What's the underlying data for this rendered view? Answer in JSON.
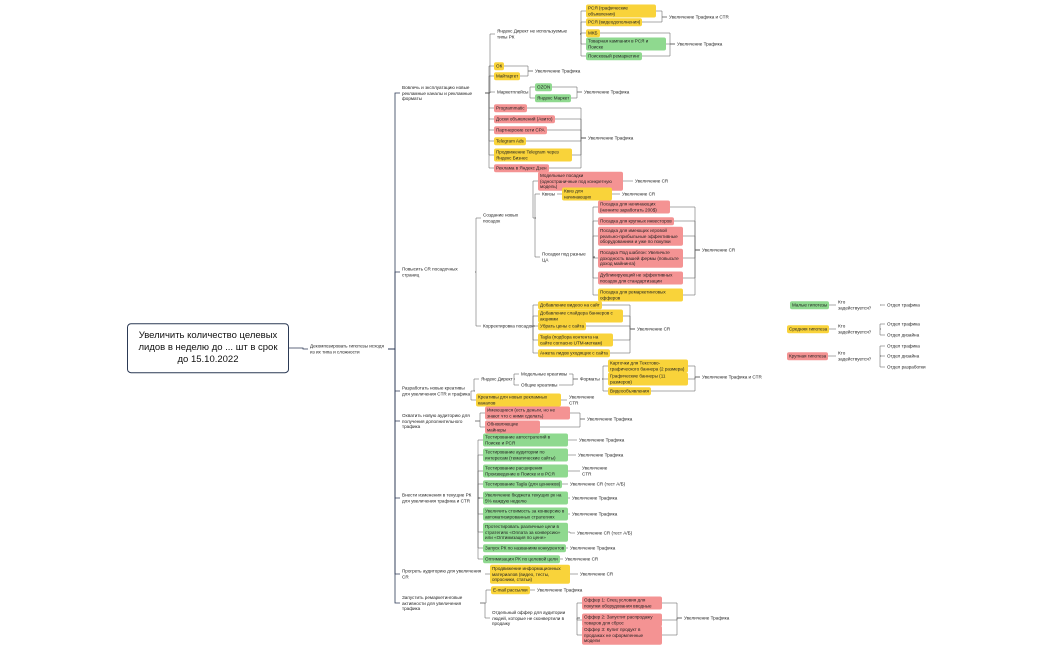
{
  "nodes": [
    {
      "label": "Увеличить количество целевых лидов в неделю до ... шт в срок до 15.10.2022"
    },
    {
      "label": "Декомпозировать гипотезы исходя из их типа и сложности"
    },
    {
      "label": "Вовлечь и эксплуатацию новые рекламные каналы и рекламные форматы"
    },
    {
      "label": "Повысить CR посадочных страниц"
    },
    {
      "label": "Разработать новые креативы для увеличения CTR и трафика"
    },
    {
      "label": "Охватить новую аудиторию для получения дополнительного трафика"
    },
    {
      "label": "Внести изменения в текущие РК для увеличения трафика и CTR"
    },
    {
      "label": "Прогреть аудиторию для увеличения CR"
    },
    {
      "label": "Запустить ремаркетинговые активности для увеличения трафика"
    },
    {
      "label": "Яндекс Директ не используемые типы РК"
    },
    {
      "label": "РСЯ (графические объявления)",
      "color": "#f9d33a"
    },
    {
      "label": "РСЯ (видеодополнения)",
      "color": "#f9d33a"
    },
    {
      "label": "МКБ",
      "color": "#f9d33a"
    },
    {
      "label": "Товарная кампания в РСЯ и Поиске",
      "color": "#8fd98f"
    },
    {
      "label": "Поисковый ремаркетинг",
      "color": "#8fd98f"
    },
    {
      "label": "Увеличение Трафика и CTR"
    },
    {
      "label": "Увеличение Трафика"
    },
    {
      "label": "ОК",
      "color": "#f9d33a"
    },
    {
      "label": "Майтаргет",
      "color": "#f9d33a"
    },
    {
      "label": "Увеличение Трафика"
    },
    {
      "label": "Маркетплейсы"
    },
    {
      "label": "OZON",
      "color": "#8fd98f"
    },
    {
      "label": "Яндекс Маркет",
      "color": "#8fd98f"
    },
    {
      "label": "Увеличение Трафика"
    },
    {
      "label": "Programmatic",
      "color": "#f49393"
    },
    {
      "label": "Доски объявлений (Авито)",
      "color": "#f49393"
    },
    {
      "label": "Партнерские сети CPA",
      "color": "#f49393"
    },
    {
      "label": "Telegram Ads",
      "color": "#f9d33a"
    },
    {
      "label": "Продвижение Telegram через Яндекс Бизнес",
      "color": "#f9d33a"
    },
    {
      "label": "Реклама в Яндекс Дзен",
      "color": "#f49393"
    },
    {
      "label": "Увеличение Трафика"
    },
    {
      "label": "Создание новых посадок"
    },
    {
      "label": "Корректировка посадок"
    },
    {
      "label": "Модельные посадки (одностраничные под конкретную модель)",
      "color": "#f49393"
    },
    {
      "label": "Увеличение CR"
    },
    {
      "label": "Квизы"
    },
    {
      "label": "Квиз для начинающих",
      "color": "#f9d33a"
    },
    {
      "label": "Увеличение CR"
    },
    {
      "label": "Посадки под разные ЦА"
    },
    {
      "label": "Посадка для начинающих (начните заработать 200$)",
      "color": "#f49393"
    },
    {
      "label": "Посадка для крупных инвесторов",
      "color": "#f49393"
    },
    {
      "label": "Посадка для имеющих игровой реально-прибыльные эффективные оборудованием и уже по покупки",
      "color": "#f49393"
    },
    {
      "label": "Посадка Под шаблон: Увеличьте доходность вашей фермы (повысьте доход майнинга)",
      "color": "#f49393"
    },
    {
      "label": "Дубликирующий не эффективных посадок для стандартизации",
      "color": "#f49393"
    },
    {
      "label": "Посадка для ремаркетинговых офферов",
      "color": "#f9d33a"
    },
    {
      "label": "Увеличение CR"
    },
    {
      "label": "Добавление видеоо на сайт",
      "color": "#f9d33a"
    },
    {
      "label": "Добавление слайдера баннеров с акциями",
      "color": "#f9d33a"
    },
    {
      "label": "Убрать цены с сайта",
      "color": "#f9d33a"
    },
    {
      "label": "Tagla (подбора контента на сайте согласно UTM-меткам)",
      "color": "#f9d33a"
    },
    {
      "label": "Анкета лидов уходящих с сайта",
      "color": "#f9d33a"
    },
    {
      "label": "Увеличение CR"
    },
    {
      "label": "Яндекс Директ"
    },
    {
      "label": "Модельные креативы"
    },
    {
      "label": "Общие креативы"
    },
    {
      "label": "Форматы"
    },
    {
      "label": "Карточки для Текстово-графического баннера (2 размера)",
      "color": "#f9d33a"
    },
    {
      "label": "Графические баннеры (11 размеров)",
      "color": "#f9d33a"
    },
    {
      "label": "Видеообъявления",
      "color": "#f9d33a"
    },
    {
      "label": "Увеличение Трафика и CTR"
    },
    {
      "label": "Креативы для новых рекламных каналов",
      "color": "#f9d33a"
    },
    {
      "label": "Увеличение CTR"
    },
    {
      "label": "Имеющиеся (есть деньги, но не знают что с ними сделать)",
      "color": "#f49393"
    },
    {
      "label": "Обновляющие майнеры",
      "color": "#f49393"
    },
    {
      "label": "Увеличение Трафика"
    },
    {
      "label": "Тестирование автостратегий в Поиске и РСЯ",
      "color": "#8fd98f"
    },
    {
      "label": "Увеличение Трафика"
    },
    {
      "label": "Тестирование аудитории по интересам (тематические сайты)",
      "color": "#8fd98f"
    },
    {
      "label": "Увеличение Трафика"
    },
    {
      "label": "Тестирование расширения Произведение в Поиске и в РСЯ",
      "color": "#8fd98f"
    },
    {
      "label": "Увеличение CTR"
    },
    {
      "label": "Тестирование Tagla (для ценников)",
      "color": "#8fd98f"
    },
    {
      "label": "Увеличение CR (тест A/Б)"
    },
    {
      "label": "Увеличение бюджета текущих рк на 5% каждую неделю",
      "color": "#8fd98f"
    },
    {
      "label": "Увеличение Трафика"
    },
    {
      "label": "Увеличить стоимость за конверсию в автоматизированных стратегиях",
      "color": "#8fd98f"
    },
    {
      "label": "Увеличение Трафика"
    },
    {
      "label": "Протестировать различные цели в стратегиях «Оплата за конверсию» или «Оптимизация по цене»",
      "color": "#8fd98f"
    },
    {
      "label": "Увеличение CR (тест A/Б)"
    },
    {
      "label": "Запуск РК по названиям конкурентов",
      "color": "#8fd98f"
    },
    {
      "label": "Увеличение Трафика"
    },
    {
      "label": "Оптимизация РК по целевой цели",
      "color": "#8fd98f"
    },
    {
      "label": "Увеличение CR"
    },
    {
      "label": "Продвижение информационных материалов (видео, тесты, опросники, статьи)",
      "color": "#f9d33a"
    },
    {
      "label": "Увеличение CR"
    },
    {
      "label": "E-mail рассылки",
      "color": "#f9d33a"
    },
    {
      "label": "Увеличение Трафика"
    },
    {
      "label": "Отдельный оффер для аудитории людей, которые не сконвертили в продажу"
    },
    {
      "label": "Оффер 1: Спец условия для покупки оборудования вводные",
      "color": "#f49393"
    },
    {
      "label": "Оффер 2: Запустит распродажу товаров для сброс",
      "color": "#f49393"
    },
    {
      "label": "Оффер 3: Купит продукт в продажах не оформленные модели",
      "color": "#f49393"
    },
    {
      "label": "Увеличение Трафика"
    },
    {
      "label": "Малые гипотезы",
      "color": "#8fd98f"
    },
    {
      "label": "Кто задействуется?"
    },
    {
      "label": "Отдел трафика"
    },
    {
      "label": "Средняя гипотеза",
      "color": "#f9d33a"
    },
    {
      "label": "Кто задействуется?"
    },
    {
      "label": "Отдел трафика"
    },
    {
      "label": "Отдел дизайна"
    },
    {
      "label": "Крупная гипотеза",
      "color": "#f49393"
    },
    {
      "label": "Кто задействуется?"
    },
    {
      "label": "Отдел трафика"
    },
    {
      "label": "Отдел дизайна"
    },
    {
      "label": "Отдел разработки"
    }
  ]
}
